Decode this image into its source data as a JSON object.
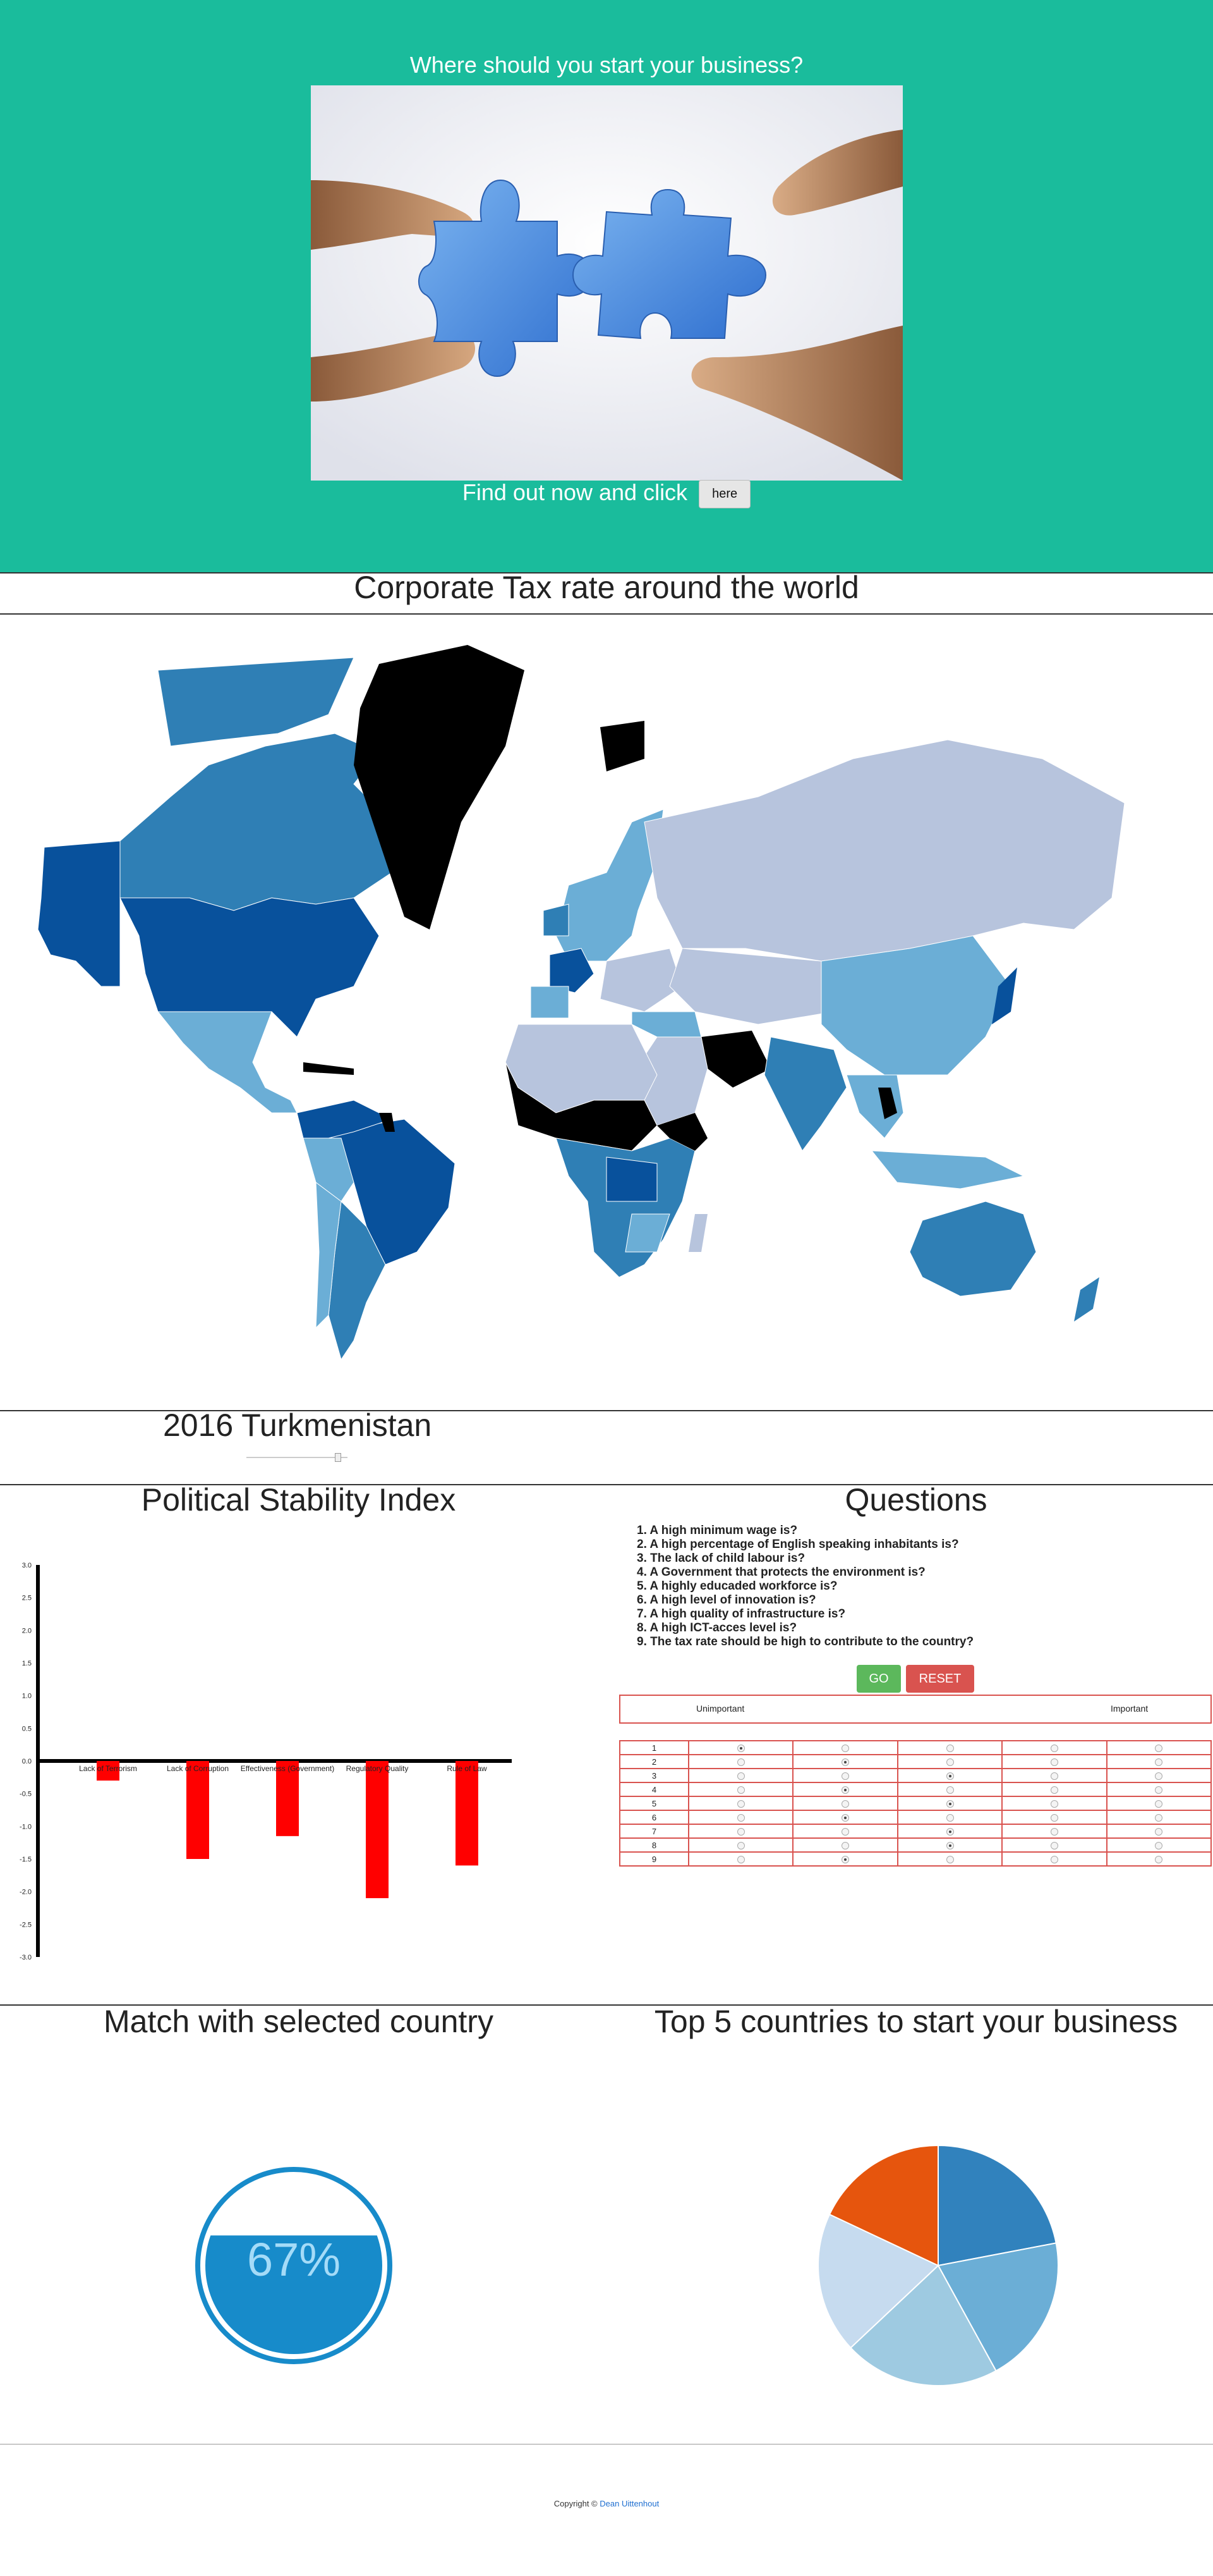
{
  "hero": {
    "title": "Where should you start your business?",
    "image_alt": "Two hands joining blue puzzle pieces",
    "cta_text": "Find out now and click",
    "cta_button": "here"
  },
  "map_section": {
    "title": "Corporate Tax rate around the world",
    "year_label": "2016 Turkmenistan",
    "slider_value": 0.93
  },
  "stability": {
    "title": "Political Stability Index"
  },
  "questions": {
    "title": "Questions",
    "items": [
      "1. A high minimum wage is?",
      "2. A high percentage of English speaking inhabitants is?",
      "3. The lack of child labour is?",
      "4. A Government that protects the environment is?",
      "5. A highly educaded workforce is?",
      "6. A high level of innovation is?",
      "7. A high quality of infrastructure is?",
      "8. A high ICT-acces level is?",
      "9. The tax rate should be high to contribute to the country?"
    ],
    "go_label": "GO",
    "reset_label": "RESET",
    "scale_low": "Unimportant",
    "scale_high": "Important",
    "rows": [
      {
        "n": "1",
        "selected": 1
      },
      {
        "n": "2",
        "selected": 2
      },
      {
        "n": "3",
        "selected": 3
      },
      {
        "n": "4",
        "selected": 2
      },
      {
        "n": "5",
        "selected": 3
      },
      {
        "n": "6",
        "selected": 2
      },
      {
        "n": "7",
        "selected": 3
      },
      {
        "n": "8",
        "selected": 3
      },
      {
        "n": "9",
        "selected": 2
      }
    ]
  },
  "match": {
    "title": "Match with selected country",
    "value_text": "67%",
    "value": 0.67,
    "color": "#178bca"
  },
  "top5": {
    "title": "Top 5 countries to start your business"
  },
  "footer": {
    "prefix": "Copyright © ",
    "author": "Dean Uittenhout"
  },
  "chart_data": [
    {
      "type": "bar",
      "title": "Political Stability Index",
      "categories": [
        "Lack of Terrorism",
        "Lack of Corruption",
        "Effectiveness (Government)",
        "Regulatory Quality",
        "Rule of Law"
      ],
      "values": [
        -0.3,
        -1.5,
        -1.15,
        -2.1,
        -1.6
      ],
      "ylim": [
        -3.0,
        3.0
      ],
      "yticks": [
        "3.0",
        "2.5",
        "2.0",
        "1.5",
        "1.0",
        "0.5",
        "0.0",
        "-0.5",
        "-1.0",
        "-1.5",
        "-2.0",
        "-2.5",
        "-3.0"
      ],
      "color": "#ff0000"
    },
    {
      "type": "pie",
      "title": "Top 5 countries to start your business",
      "values": [
        22,
        20,
        21,
        19,
        18
      ],
      "colors": [
        "#3182bd",
        "#6baed6",
        "#9ecae1",
        "#c6dbef",
        "#e6550d"
      ]
    }
  ],
  "colors": {
    "hero_bg": "#1abc9c",
    "map_darkest": "#08519c",
    "map_dark": "#2f7fb5",
    "map_mid": "#6baed6",
    "map_light": "#b7c4dd",
    "map_nodata": "#000000",
    "go": "#5cb85c",
    "reset": "#d9534f"
  }
}
